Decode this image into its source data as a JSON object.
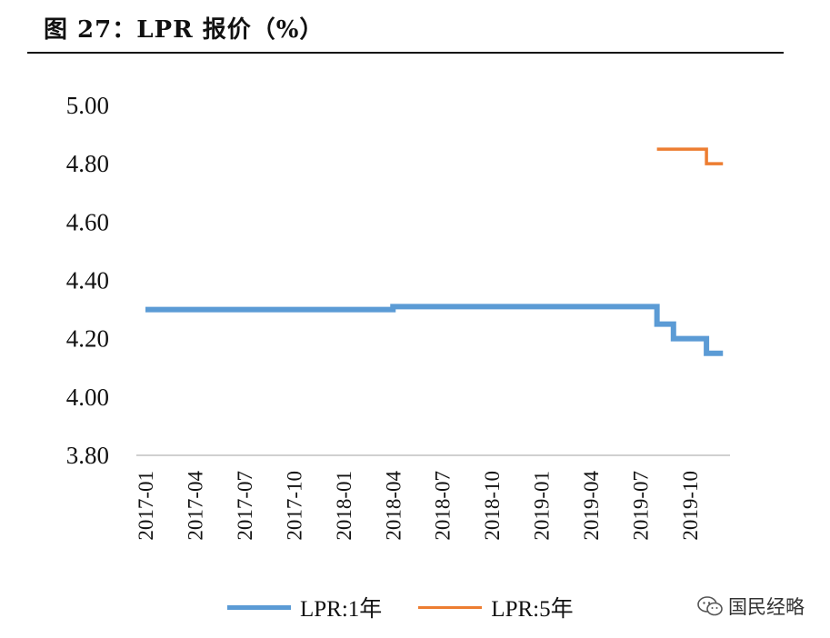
{
  "figure": {
    "title": "图 27：LPR 报价（%）"
  },
  "watermark": {
    "text": "国民经略",
    "icon": "wechat-icon"
  },
  "chart_data": {
    "type": "line",
    "title": "",
    "xlabel": "",
    "ylabel": "",
    "ylim": [
      3.8,
      5.0
    ],
    "yticks": [
      "5.00",
      "4.80",
      "4.60",
      "4.40",
      "4.20",
      "4.00",
      "3.80"
    ],
    "ytick_values": [
      5.0,
      4.8,
      4.6,
      4.4,
      4.2,
      4.0,
      3.8
    ],
    "xticks": [
      "2017-01",
      "2017-04",
      "2017-07",
      "2017-10",
      "2018-01",
      "2018-04",
      "2018-07",
      "2018-10",
      "2019-01",
      "2019-04",
      "2019-07",
      "2019-10"
    ],
    "grid": false,
    "legend_position": "bottom",
    "series": [
      {
        "name": "LPR:1年",
        "color": "#5B9BD5",
        "step": true,
        "points": [
          [
            "2017-01",
            4.3
          ],
          [
            "2018-03",
            4.3
          ],
          [
            "2018-04",
            4.31
          ],
          [
            "2019-07",
            4.31
          ],
          [
            "2019-08",
            4.25
          ],
          [
            "2019-09",
            4.2
          ],
          [
            "2019-11",
            4.15
          ],
          [
            "2019-12",
            4.15
          ]
        ]
      },
      {
        "name": "LPR:5年",
        "color": "#ED7D31",
        "step": true,
        "points": [
          [
            "2019-08",
            4.85
          ],
          [
            "2019-11",
            4.8
          ],
          [
            "2019-12",
            4.8
          ]
        ]
      }
    ]
  }
}
